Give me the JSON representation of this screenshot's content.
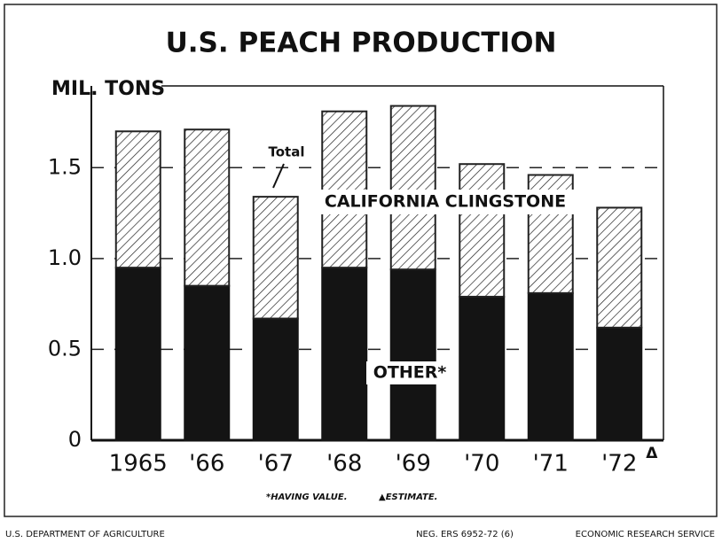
{
  "chart_data": {
    "type": "stacked_bar",
    "title": "U.S. PEACH PRODUCTION",
    "y_label": "MIL. TONS",
    "categories": [
      "1965",
      "'66",
      "'67",
      "'68",
      "'69",
      "'70",
      "'71",
      "'72"
    ],
    "estimate_marker": "Δ",
    "series": [
      {
        "name": "OTHER*",
        "color": "#141414",
        "hatch": false,
        "values": [
          0.95,
          0.85,
          0.67,
          0.95,
          0.94,
          0.79,
          0.81,
          0.62
        ]
      },
      {
        "name": "CALIFORNIA CLINGSTONE",
        "color": "#222222",
        "hatch": true,
        "values": [
          0.75,
          0.86,
          0.67,
          0.86,
          0.9,
          0.73,
          0.65,
          0.66
        ]
      }
    ],
    "annotation": "Total",
    "ylim": [
      0,
      1.95
    ],
    "yticks": [
      0,
      0.5,
      {
        "value": 1,
        "label": "1.0"
      },
      1.5
    ],
    "grid": true,
    "footnotes": [
      "*HAVING VALUE.",
      "▲ESTIMATE."
    ],
    "footer": {
      "left": "U.S. DEPARTMENT OF AGRICULTURE",
      "middle": "NEG. ERS 6952-72 (6)",
      "right": "ECONOMIC RESEARCH SERVICE"
    }
  }
}
